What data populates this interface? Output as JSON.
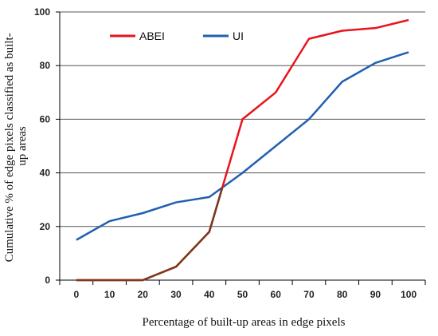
{
  "chart_data": {
    "type": "line",
    "xlabel": "Percentage of built-up areas in edge pixels",
    "ylabel": "Cumulative % of edge pixels classified as built-up areas",
    "x": [
      0,
      10,
      20,
      30,
      40,
      50,
      60,
      70,
      80,
      90,
      100
    ],
    "xlim": [
      -5,
      105
    ],
    "ylim": [
      0,
      100
    ],
    "yticks": [
      0,
      20,
      40,
      60,
      80,
      100
    ],
    "grid": "horizontal",
    "legend": "top-left",
    "series": [
      {
        "name": "ABEI",
        "color": "#e8141c",
        "values": [
          0,
          0,
          0,
          5,
          18,
          60,
          70,
          90,
          93,
          94,
          97
        ]
      },
      {
        "name": "UI",
        "color": "#2060b0",
        "values": [
          15,
          22,
          25,
          29,
          31,
          40,
          50,
          60,
          74,
          81,
          85
        ]
      }
    ],
    "overlap_color": "#7a3a20"
  }
}
